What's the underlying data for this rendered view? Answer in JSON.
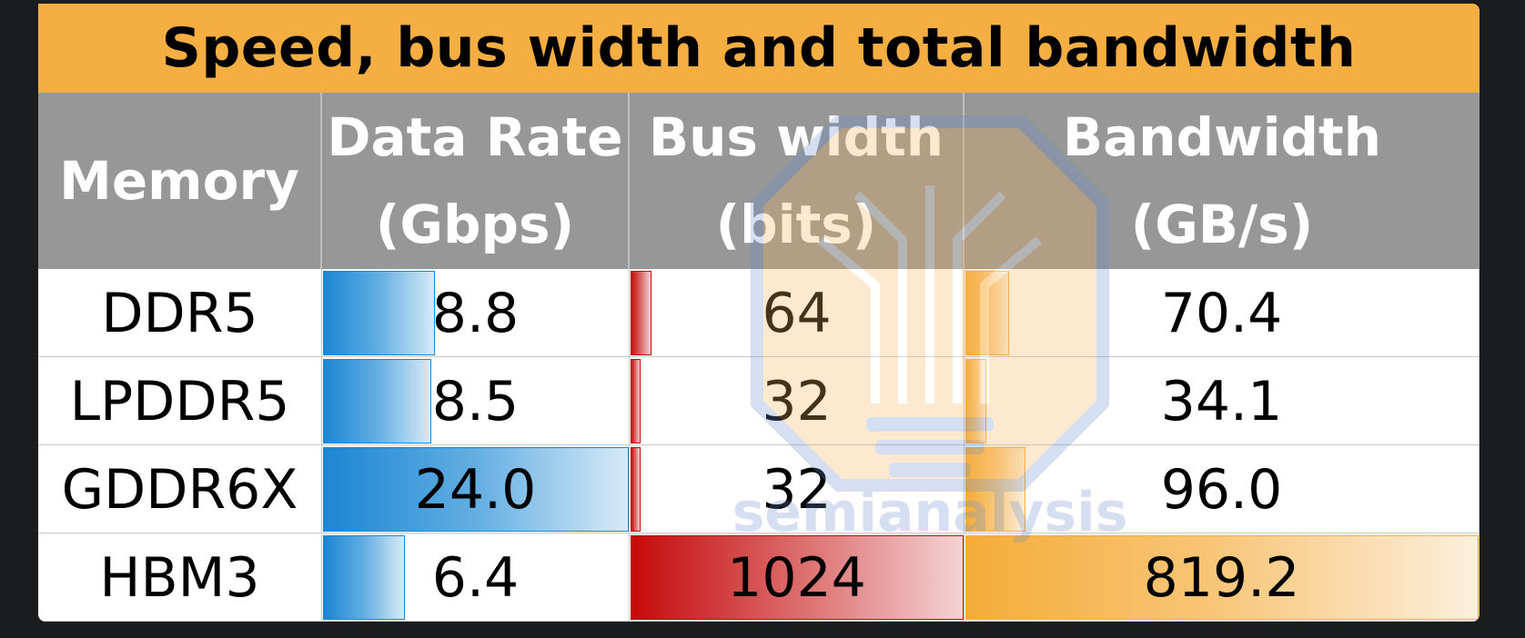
{
  "chart_data": {
    "type": "table",
    "title": "Speed, bus width and total bandwidth",
    "columns": [
      {
        "key": "memory",
        "label_lines": [
          "Memory"
        ]
      },
      {
        "key": "rate",
        "label_lines": [
          "Data Rate",
          "(Gbps)"
        ]
      },
      {
        "key": "bus",
        "label_lines": [
          "Bus width",
          "(bits)"
        ]
      },
      {
        "key": "bw",
        "label_lines": [
          "Bandwidth",
          "(GB/s)"
        ]
      }
    ],
    "rows": [
      {
        "memory": "DDR5",
        "rate": 8.8,
        "rate_label": "8.8",
        "bus": 64,
        "bus_label": "64",
        "bw": 70.4,
        "bw_label": "70.4"
      },
      {
        "memory": "LPDDR5",
        "rate": 8.5,
        "rate_label": "8.5",
        "bus": 32,
        "bus_label": "32",
        "bw": 34.1,
        "bw_label": "34.1"
      },
      {
        "memory": "GDDR6X",
        "rate": 24.0,
        "rate_label": "24.0",
        "bus": 32,
        "bus_label": "32",
        "bw": 96.0,
        "bw_label": "96.0"
      },
      {
        "memory": "HBM3",
        "rate": 6.4,
        "rate_label": "6.4",
        "bus": 1024,
        "bus_label": "1024",
        "bw": 819.2,
        "bw_label": "819.2"
      }
    ],
    "data_bar_max": {
      "rate": 24.0,
      "bus": 1024,
      "bw": 819.2
    },
    "colors": {
      "title_bg": "#f5ae42",
      "header_bg": "#979797",
      "rate_bar": "#1a86d3",
      "bus_bar": "#c50a0a",
      "bw_bar": "#f5ac38"
    }
  },
  "watermark": {
    "text": "semianalysis",
    "icon": "lightbulb-circuit-icon"
  }
}
